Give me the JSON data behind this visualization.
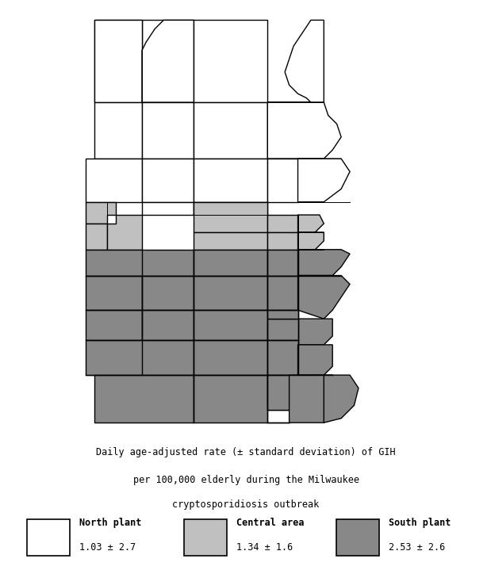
{
  "title_line1": "Daily age-adjusted rate (± standard deviation) of GIH",
  "title_line2": "per 100,000 elderly during the Milwaukee",
  "title_line3": "cryptosporidiosis outbreak",
  "north_color": "#ffffff",
  "central_color": "#c0c0c0",
  "south_color": "#888888",
  "edge_color": "#000000",
  "background": "#ffffff",
  "legend": [
    {
      "name_line1": "North plant",
      "name_line2": "1.03 ± 2.7",
      "color": "#ffffff"
    },
    {
      "name_line1": "Central area",
      "name_line2": "1.34 ± 1.6",
      "color": "#c0c0c0"
    },
    {
      "name_line1": "South plant",
      "name_line2": "2.53 ± 2.6",
      "color": "#888888"
    }
  ]
}
